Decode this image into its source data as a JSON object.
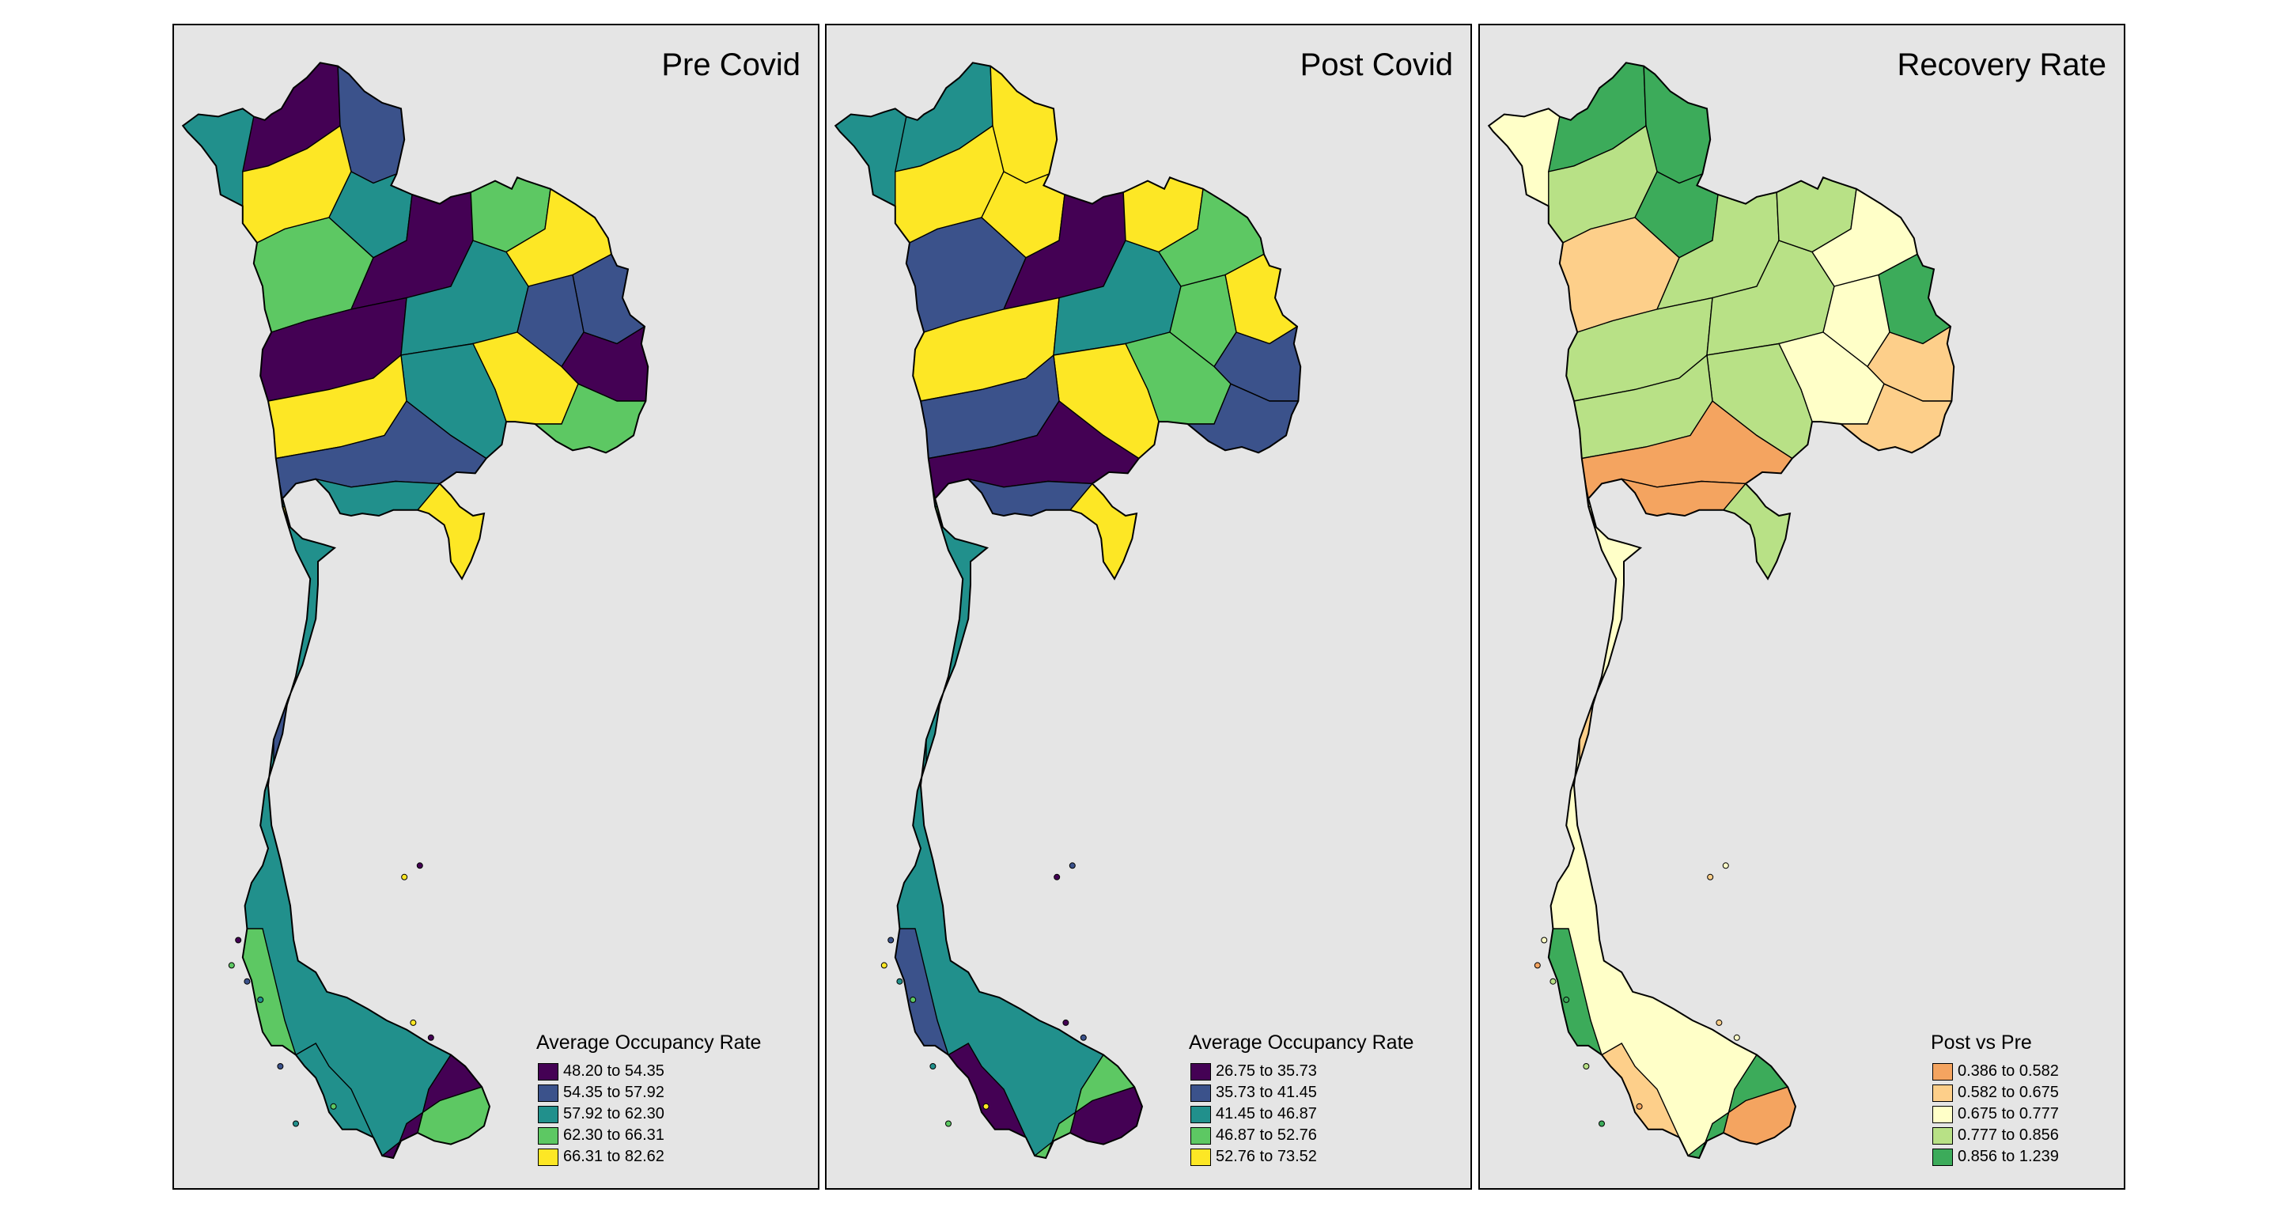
{
  "panels": [
    {
      "title": "Pre Covid",
      "legend": {
        "title": "Average Occupancy Rate",
        "items": [
          {
            "label": "48.20 to 54.35",
            "color": "#440154"
          },
          {
            "label": "54.35 to 57.92",
            "color": "#3b528b"
          },
          {
            "label": "57.92 to 62.30",
            "color": "#21908c"
          },
          {
            "label": "62.30 to 66.31",
            "color": "#5dc863"
          },
          {
            "label": "66.31 to 82.62",
            "color": "#fde725"
          }
        ]
      }
    },
    {
      "title": "Post Covid",
      "legend": {
        "title": "Average Occupancy Rate",
        "items": [
          {
            "label": "26.75 to 35.73",
            "color": "#440154"
          },
          {
            "label": "35.73 to 41.45",
            "color": "#3b528b"
          },
          {
            "label": "41.45 to 46.87",
            "color": "#21908c"
          },
          {
            "label": "46.87 to 52.76",
            "color": "#5dc863"
          },
          {
            "label": "52.76 to 73.52",
            "color": "#fde725"
          }
        ]
      }
    },
    {
      "title": "Recovery Rate",
      "legend": {
        "title": "Post vs Pre",
        "items": [
          {
            "label": "0.386 to 0.582",
            "color": "#f4a460"
          },
          {
            "label": "0.582 to 0.675",
            "color": "#fdcf8a"
          },
          {
            "label": "0.675 to 0.777",
            "color": "#ffffc8"
          },
          {
            "label": "0.777 to 0.856",
            "color": "#b8e186"
          },
          {
            "label": "0.856 to 1.239",
            "color": "#3cab5a"
          }
        ]
      }
    }
  ]
}
